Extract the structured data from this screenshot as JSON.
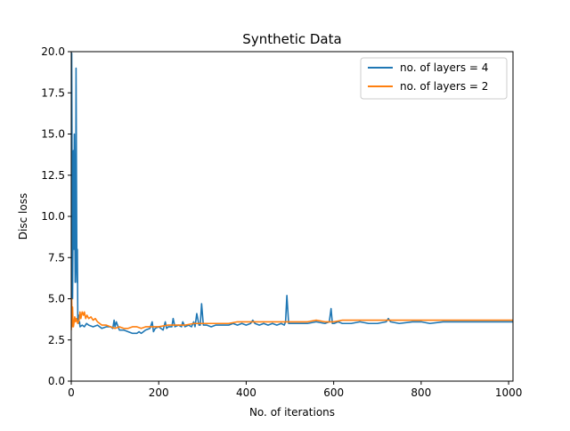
{
  "chart_data": {
    "type": "line",
    "title": "Synthetic Data",
    "xlabel": "No. of iterations",
    "ylabel": "Disc loss",
    "xlim": [
      0,
      1010
    ],
    "ylim": [
      0,
      20
    ],
    "xticks": [
      0,
      200,
      400,
      600,
      800,
      1000
    ],
    "xtick_labels": [
      "0",
      "200",
      "400",
      "600",
      "800",
      "1000"
    ],
    "yticks": [
      0,
      2.5,
      5,
      7.5,
      10,
      12.5,
      15,
      17.5,
      20
    ],
    "ytick_labels": [
      "0.0",
      "2.5",
      "5.0",
      "7.5",
      "10.0",
      "12.5",
      "15.0",
      "17.5",
      "20.0"
    ],
    "grid": false,
    "legend_position": "top-right",
    "series": [
      {
        "name": "no. of layers = 4",
        "color": "#1f77b4",
        "x": [
          0,
          1,
          2,
          3,
          4,
          5,
          6,
          7,
          8,
          9,
          10,
          11,
          12,
          13,
          14,
          15,
          16,
          17,
          18,
          19,
          20,
          25,
          30,
          35,
          40,
          50,
          60,
          70,
          80,
          90,
          95,
          98,
          100,
          103,
          110,
          120,
          130,
          140,
          150,
          155,
          160,
          170,
          180,
          185,
          188,
          192,
          200,
          210,
          215,
          218,
          222,
          230,
          233,
          237,
          245,
          252,
          255,
          260,
          268,
          275,
          280,
          283,
          287,
          292,
          295,
          298,
          302,
          310,
          320,
          330,
          340,
          350,
          360,
          370,
          380,
          390,
          400,
          410,
          415,
          420,
          430,
          440,
          450,
          460,
          470,
          480,
          487,
          490,
          493,
          497,
          505,
          520,
          540,
          560,
          580,
          590,
          594,
          597,
          601,
          610,
          620,
          640,
          660,
          680,
          700,
          720,
          725,
          730,
          750,
          780,
          800,
          820,
          850,
          880,
          900,
          920,
          950,
          980,
          1000,
          1010
        ],
        "values": [
          3.5,
          19.9,
          12.0,
          5.0,
          9.0,
          14.0,
          8.0,
          15.0,
          10.5,
          6.0,
          7.0,
          19.0,
          12.3,
          6.0,
          8.0,
          3.6,
          3.8,
          4.0,
          3.5,
          3.6,
          3.3,
          3.4,
          3.3,
          3.5,
          3.4,
          3.3,
          3.4,
          3.2,
          3.3,
          3.3,
          3.2,
          3.7,
          3.3,
          3.6,
          3.1,
          3.1,
          3.0,
          2.9,
          2.9,
          3.0,
          2.9,
          3.1,
          3.2,
          3.6,
          3.0,
          3.2,
          3.3,
          3.1,
          3.6,
          3.2,
          3.3,
          3.3,
          3.8,
          3.3,
          3.4,
          3.3,
          3.6,
          3.3,
          3.4,
          3.3,
          3.6,
          3.3,
          4.1,
          3.4,
          3.4,
          4.7,
          3.4,
          3.4,
          3.3,
          3.4,
          3.4,
          3.4,
          3.4,
          3.5,
          3.4,
          3.5,
          3.4,
          3.5,
          3.7,
          3.5,
          3.4,
          3.5,
          3.4,
          3.5,
          3.4,
          3.5,
          3.4,
          3.6,
          5.2,
          3.5,
          3.5,
          3.5,
          3.5,
          3.6,
          3.5,
          3.6,
          4.4,
          3.5,
          3.5,
          3.6,
          3.5,
          3.5,
          3.6,
          3.5,
          3.5,
          3.6,
          3.8,
          3.6,
          3.5,
          3.6,
          3.6,
          3.5,
          3.6,
          3.6,
          3.6,
          3.6,
          3.6,
          3.6,
          3.6,
          3.6
        ]
      },
      {
        "name": "no. of layers = 2",
        "color": "#ff7f0e",
        "x": [
          0,
          1,
          2,
          3,
          4,
          5,
          6,
          8,
          10,
          12,
          15,
          18,
          20,
          22,
          25,
          28,
          30,
          33,
          36,
          40,
          45,
          50,
          55,
          60,
          70,
          80,
          90,
          100,
          110,
          120,
          130,
          140,
          150,
          160,
          170,
          180,
          190,
          200,
          220,
          240,
          260,
          280,
          300,
          320,
          340,
          360,
          380,
          400,
          420,
          440,
          460,
          480,
          500,
          520,
          540,
          560,
          580,
          600,
          620,
          640,
          660,
          680,
          700,
          720,
          740,
          760,
          780,
          800,
          820,
          840,
          860,
          880,
          900,
          920,
          940,
          960,
          980,
          1000,
          1010
        ],
        "values": [
          3.1,
          5.0,
          3.3,
          4.5,
          3.6,
          3.3,
          3.5,
          3.9,
          3.6,
          3.8,
          3.5,
          3.7,
          4.2,
          3.8,
          4.2,
          4.0,
          4.2,
          3.8,
          4.0,
          3.8,
          3.9,
          3.7,
          3.8,
          3.6,
          3.4,
          3.4,
          3.3,
          3.2,
          3.3,
          3.2,
          3.2,
          3.3,
          3.3,
          3.2,
          3.3,
          3.3,
          3.3,
          3.3,
          3.4,
          3.4,
          3.4,
          3.5,
          3.5,
          3.5,
          3.5,
          3.5,
          3.6,
          3.6,
          3.6,
          3.6,
          3.6,
          3.6,
          3.6,
          3.6,
          3.6,
          3.7,
          3.6,
          3.6,
          3.7,
          3.7,
          3.7,
          3.7,
          3.7,
          3.7,
          3.7,
          3.7,
          3.7,
          3.7,
          3.7,
          3.7,
          3.7,
          3.7,
          3.7,
          3.7,
          3.7,
          3.7,
          3.7,
          3.7,
          3.7
        ]
      }
    ]
  }
}
